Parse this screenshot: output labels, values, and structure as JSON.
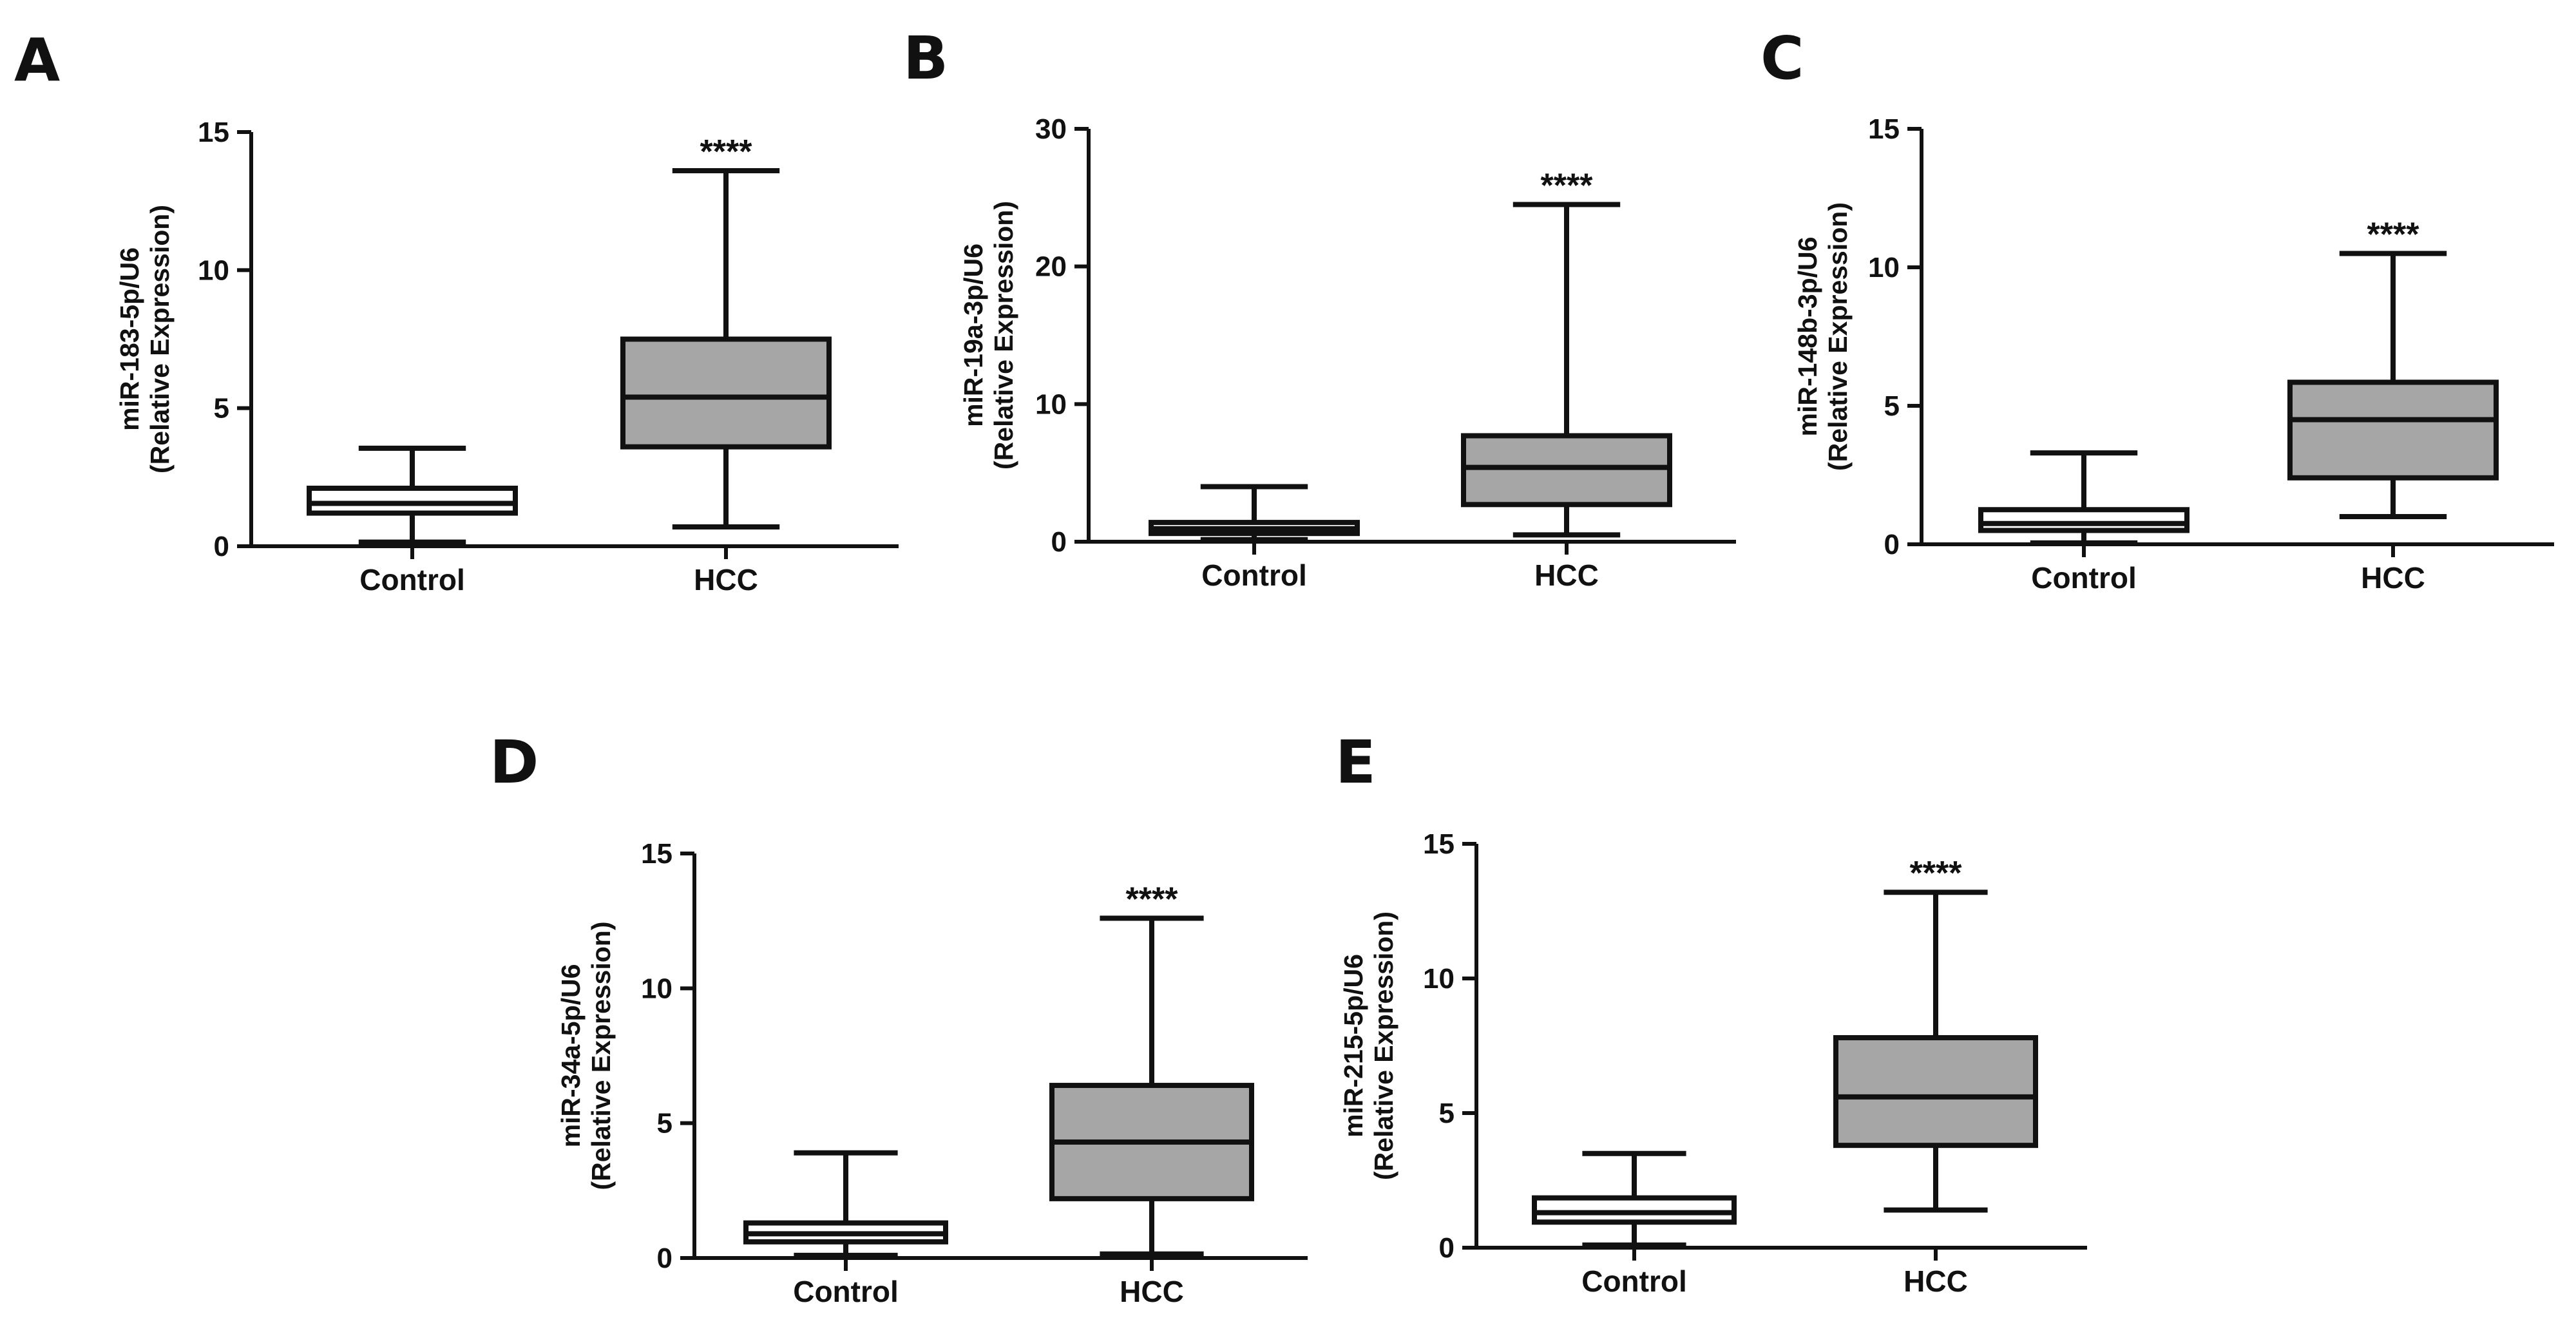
{
  "colors": {
    "control_fill": "#ffffff",
    "hcc_fill": "#a6a6a6",
    "stroke": "#111111"
  },
  "chart_data": [
    {
      "type": "box",
      "panel": "A",
      "ylabel_line1": "miR-183-5p/U6",
      "ylabel_line2": "(Relative Expression)",
      "ylim": [
        0,
        15
      ],
      "yticks": [
        0,
        5,
        10,
        15
      ],
      "categories": [
        "Control",
        "HCC"
      ],
      "boxes": [
        {
          "name": "Control",
          "min": 0.15,
          "q1": 1.2,
          "median": 1.55,
          "q3": 2.1,
          "max": 3.55
        },
        {
          "name": "HCC",
          "min": 0.7,
          "q1": 3.6,
          "median": 5.4,
          "q3": 7.5,
          "max": 13.6
        }
      ],
      "significance": "****"
    },
    {
      "type": "box",
      "panel": "B",
      "ylabel_line1": "miR-19a-3p/U6",
      "ylabel_line2": "(Relative Expression)",
      "ylim": [
        0,
        30
      ],
      "yticks": [
        0,
        10,
        20,
        30
      ],
      "categories": [
        "Control",
        "HCC"
      ],
      "boxes": [
        {
          "name": "Control",
          "min": 0.15,
          "q1": 0.6,
          "median": 0.95,
          "q3": 1.4,
          "max": 4.0
        },
        {
          "name": "HCC",
          "min": 0.5,
          "q1": 2.7,
          "median": 5.4,
          "q3": 7.7,
          "max": 24.5
        }
      ],
      "significance": "****"
    },
    {
      "type": "box",
      "panel": "C",
      "ylabel_line1": "miR-148b-3p/U6",
      "ylabel_line2": "(Relative Expression)",
      "ylim": [
        0,
        15
      ],
      "yticks": [
        0,
        5,
        10,
        15
      ],
      "categories": [
        "Control",
        "HCC"
      ],
      "boxes": [
        {
          "name": "Control",
          "min": 0.05,
          "q1": 0.5,
          "median": 0.75,
          "q3": 1.25,
          "max": 3.3
        },
        {
          "name": "HCC",
          "min": 1.0,
          "q1": 2.4,
          "median": 4.5,
          "q3": 5.85,
          "max": 10.5
        }
      ],
      "significance": "****"
    },
    {
      "type": "box",
      "panel": "D",
      "ylabel_line1": "miR-34a-5p/U6",
      "ylabel_line2": "(Relative Expression)",
      "ylim": [
        0,
        15
      ],
      "yticks": [
        0,
        5,
        10,
        15
      ],
      "categories": [
        "Control",
        "HCC"
      ],
      "boxes": [
        {
          "name": "Control",
          "min": 0.1,
          "q1": 0.6,
          "median": 0.9,
          "q3": 1.3,
          "max": 3.9
        },
        {
          "name": "HCC",
          "min": 0.15,
          "q1": 2.2,
          "median": 4.3,
          "q3": 6.4,
          "max": 12.6
        }
      ],
      "significance": "****"
    },
    {
      "type": "box",
      "panel": "E",
      "ylabel_line1": "miR-215-5p/U6",
      "ylabel_line2": "(Relative Expression)",
      "ylim": [
        0,
        15
      ],
      "yticks": [
        0,
        5,
        10,
        15
      ],
      "categories": [
        "Control",
        "HCC"
      ],
      "boxes": [
        {
          "name": "Control",
          "min": 0.1,
          "q1": 0.95,
          "median": 1.3,
          "q3": 1.85,
          "max": 3.5
        },
        {
          "name": "HCC",
          "min": 1.4,
          "q1": 3.8,
          "median": 5.6,
          "q3": 7.8,
          "max": 13.2
        }
      ],
      "significance": "****"
    }
  ]
}
